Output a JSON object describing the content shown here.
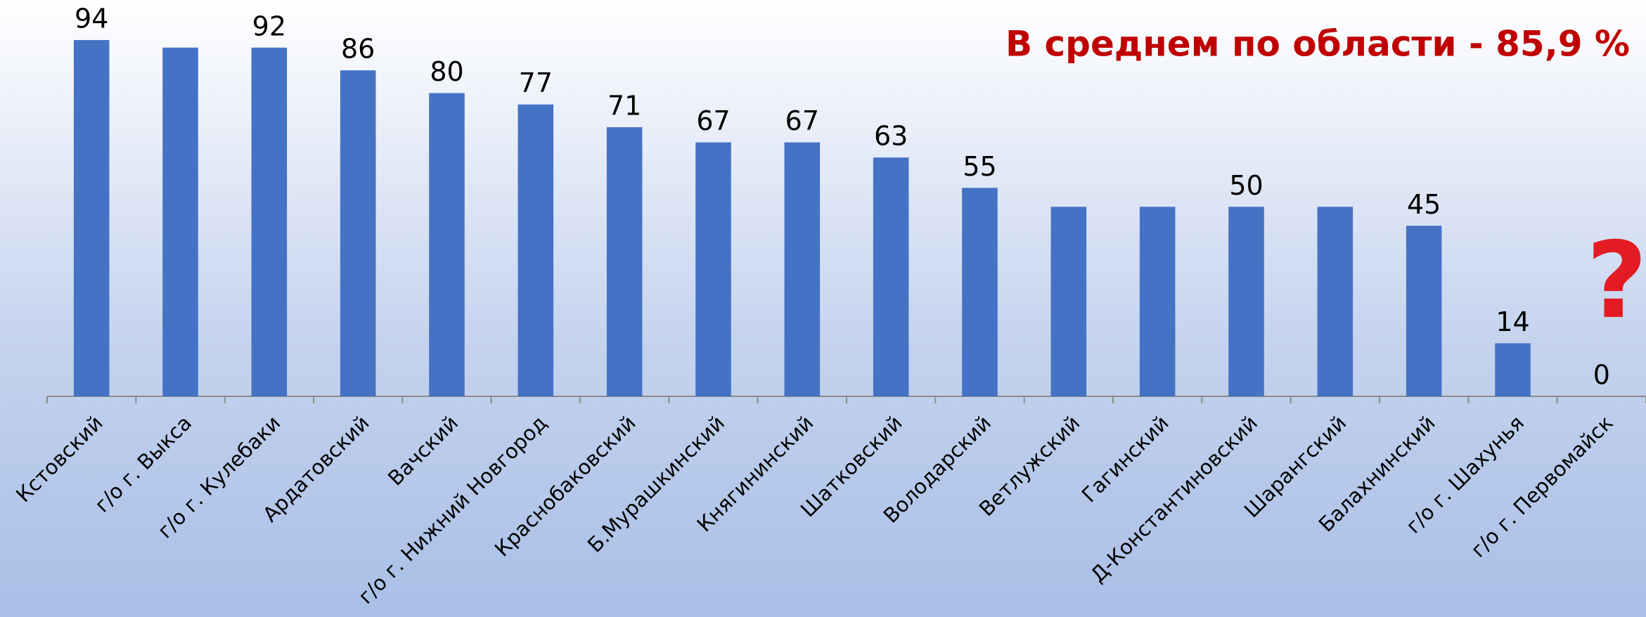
{
  "chart_data": {
    "type": "bar",
    "annotations": [
      "В среднем по области - 85,9 %",
      "?"
    ],
    "categories": [
      "Кстовский",
      "г/о г. Выкса",
      "г/о г. Кулебаки",
      "Ардатовский",
      "Вачский",
      "г/о г. Нижний Новгород",
      "Краснобаковский",
      "Б.Мурашкинский",
      "Княгининский",
      "Шатковский",
      "Володарский",
      "Ветлужский",
      "Гагинский",
      "Д-Константиновский",
      "Шарангский",
      "Балахнинский",
      "г/о г. Шахунья",
      "г/о г. Первомайск"
    ],
    "values": [
      94,
      92,
      92,
      86,
      80,
      77,
      71,
      67,
      67,
      63,
      55,
      50,
      50,
      50,
      50,
      45,
      14,
      0
    ],
    "value_labels": [
      "94",
      null,
      "92",
      "86",
      "80",
      "77",
      "71",
      "67",
      "67",
      "63",
      "55",
      null,
      null,
      "50",
      null,
      "45",
      "14",
      "0"
    ],
    "color": "#4472c4",
    "ylim": [
      0,
      100
    ]
  }
}
